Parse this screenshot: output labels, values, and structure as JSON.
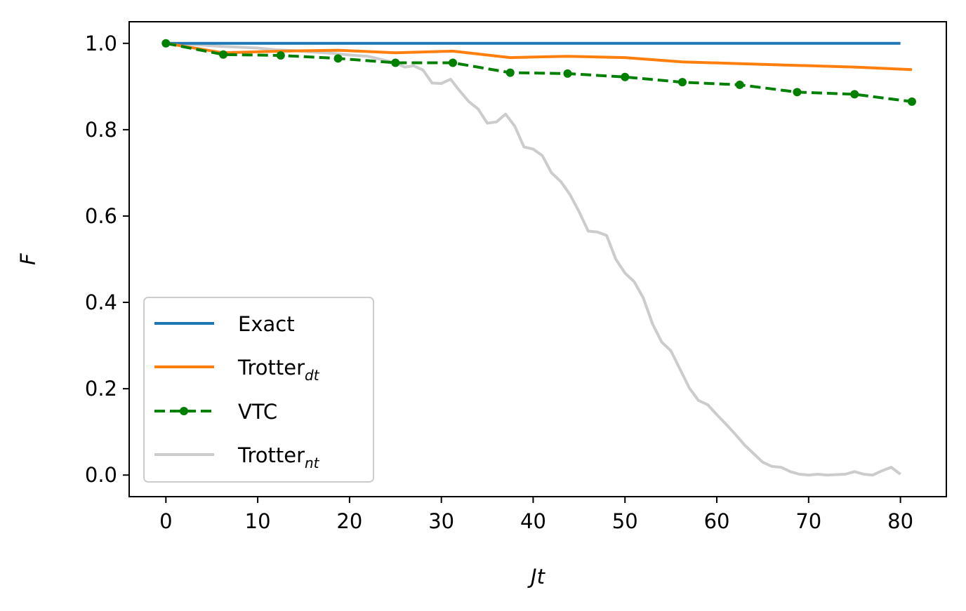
{
  "chart_data": {
    "type": "line",
    "xlabel": "Jt",
    "ylabel": "F",
    "xlim": [
      -4,
      85
    ],
    "ylim": [
      -0.05,
      1.05
    ],
    "xticks": [
      0,
      10,
      20,
      30,
      40,
      50,
      60,
      70,
      80
    ],
    "yticks": [
      0.0,
      0.2,
      0.4,
      0.6,
      0.8,
      1.0
    ],
    "xtick_labels": [
      "0",
      "10",
      "20",
      "30",
      "40",
      "50",
      "60",
      "70",
      "80"
    ],
    "ytick_labels": [
      "0.0",
      "0.2",
      "0.4",
      "0.6",
      "0.8",
      "1.0"
    ],
    "grid": false,
    "legend_position": "lower-left",
    "series": [
      {
        "name": "Exact",
        "legend_base": "Exact",
        "legend_sub": "",
        "color": "#1f77b4",
        "style": "solid",
        "x": [
          0,
          80
        ],
        "y": [
          1.0,
          1.0
        ]
      },
      {
        "name": "Trotter_dt",
        "legend_base": "Trotter",
        "legend_sub": "dt",
        "color": "#ff7f0e",
        "style": "solid",
        "x": [
          0,
          6.25,
          12.5,
          18.75,
          25.0,
          31.25,
          37.5,
          43.75,
          50.0,
          56.25,
          62.5,
          68.75,
          75.0,
          81.25
        ],
        "y": [
          1.0,
          0.978,
          0.982,
          0.984,
          0.978,
          0.982,
          0.967,
          0.97,
          0.967,
          0.957,
          0.953,
          0.949,
          0.945,
          0.939
        ]
      },
      {
        "name": "VTC",
        "legend_base": "VTC",
        "legend_sub": "",
        "color": "#008000",
        "style": "dashed-markers",
        "x": [
          0,
          6.25,
          12.5,
          18.75,
          25.0,
          31.25,
          37.5,
          43.75,
          50.0,
          56.25,
          62.5,
          68.75,
          75.0,
          81.25
        ],
        "y": [
          1.0,
          0.974,
          0.972,
          0.965,
          0.955,
          0.955,
          0.932,
          0.93,
          0.922,
          0.91,
          0.904,
          0.887,
          0.882,
          0.865
        ]
      },
      {
        "name": "Trotter_nt",
        "legend_base": "Trotter",
        "legend_sub": "nt",
        "color": "#cccccc",
        "style": "solid",
        "x": [
          0,
          2,
          4,
          6,
          8,
          10,
          12,
          14,
          16,
          18,
          20,
          22,
          24,
          25,
          26,
          27,
          28,
          29,
          30,
          31,
          32,
          33,
          34,
          35,
          36,
          37,
          38,
          39,
          40,
          41,
          42,
          43,
          44,
          45,
          46,
          47,
          48,
          49,
          50,
          51,
          52,
          53,
          54,
          55,
          56,
          57,
          58,
          59,
          60,
          61,
          62,
          63,
          64,
          65,
          66,
          67,
          68,
          69,
          70,
          71,
          72,
          73,
          74,
          75,
          76,
          77,
          78,
          79,
          80
        ],
        "y": [
          1.0,
          0.998,
          0.996,
          0.993,
          0.991,
          0.989,
          0.985,
          0.983,
          0.98,
          0.977,
          0.973,
          0.97,
          0.96,
          0.955,
          0.945,
          0.948,
          0.938,
          0.908,
          0.907,
          0.917,
          0.89,
          0.865,
          0.848,
          0.815,
          0.818,
          0.836,
          0.808,
          0.76,
          0.755,
          0.74,
          0.7,
          0.68,
          0.65,
          0.61,
          0.565,
          0.563,
          0.555,
          0.5,
          0.468,
          0.448,
          0.41,
          0.35,
          0.308,
          0.288,
          0.245,
          0.202,
          0.173,
          0.163,
          0.14,
          0.118,
          0.095,
          0.07,
          0.05,
          0.03,
          0.02,
          0.018,
          0.008,
          0.002,
          0.0,
          0.002,
          0.0,
          0.001,
          0.002,
          0.008,
          0.002,
          0.0,
          0.01,
          0.018,
          0.002
        ]
      }
    ]
  }
}
